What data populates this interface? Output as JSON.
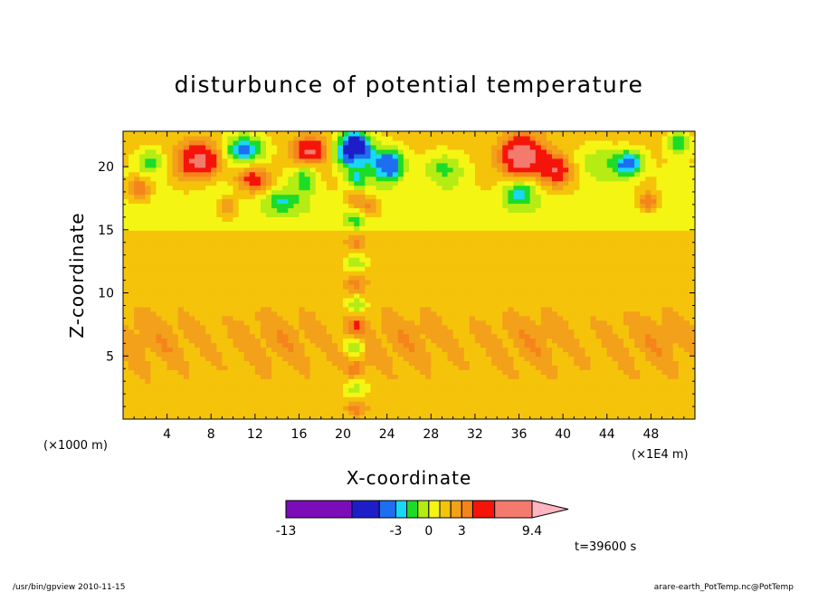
{
  "chart_data": {
    "type": "heatmap",
    "title": "disturbunce of potential temperature",
    "xlabel": "X-coordinate",
    "ylabel": "Z-coordinate",
    "x_units": "(×1000 m)",
    "x_multiplier": "(×1E4 m)",
    "xlim": [
      0,
      52
    ],
    "ylim": [
      0,
      22.8
    ],
    "x_ticks": [
      "4",
      "8",
      "12",
      "16",
      "20",
      "24",
      "28",
      "32",
      "36",
      "40",
      "44",
      "48"
    ],
    "x_tick_values": [
      4,
      8,
      12,
      16,
      20,
      24,
      28,
      32,
      36,
      40,
      44,
      48
    ],
    "y_ticks": [
      "5",
      "10",
      "15",
      "20"
    ],
    "y_tick_values": [
      5,
      10,
      15,
      20
    ],
    "colorbar": {
      "labels": [
        "-13",
        "-3",
        "0",
        "3",
        "9.4"
      ],
      "label_values": [
        -13,
        -3,
        0,
        3,
        9.4
      ],
      "levels": [
        -13,
        -7,
        -4.5,
        -3,
        -2,
        -1,
        0,
        1,
        2,
        3,
        4,
        6,
        9.4
      ],
      "colors": [
        "#dd0ab0",
        "#7b0cb8",
        "#1e1ec8",
        "#1e6ef0",
        "#19d7f5",
        "#1cdc28",
        "#b4ec14",
        "#f5f514",
        "#f5c30a",
        "#f3a01a",
        "#f5851a",
        "#f5140a",
        "#f57a6e",
        "#ffb4c0"
      ]
    },
    "time_label": "t=39600 s",
    "grid": false,
    "legend_position": "bottom-center colorbar"
  },
  "footer": {
    "left": "/usr/bin/gpview   2010-11-15",
    "right": "arare-earth_PotTemp.nc@PotTemp"
  }
}
